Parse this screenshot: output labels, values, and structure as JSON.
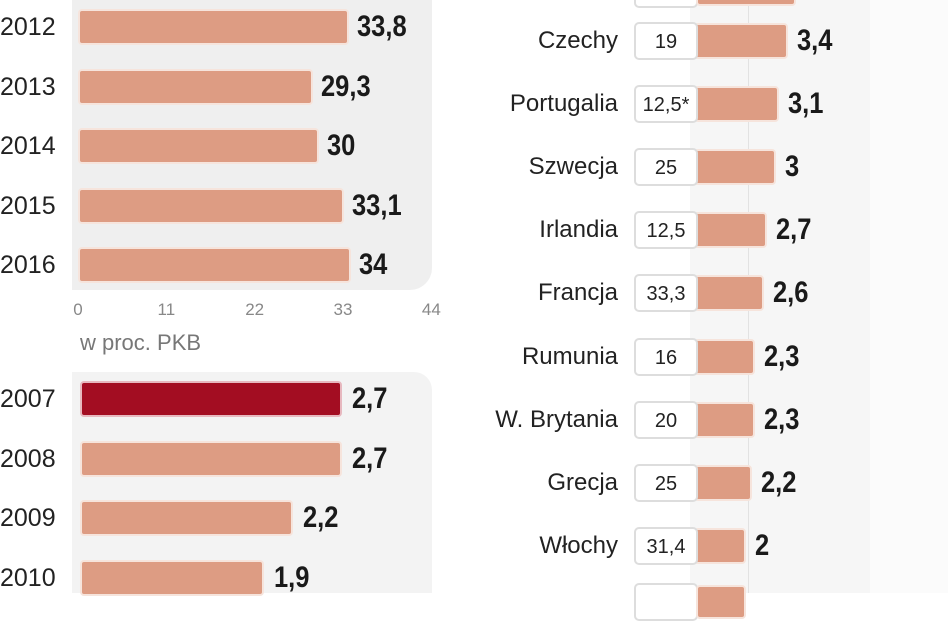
{
  "chart_data": [
    {
      "type": "bar",
      "orientation": "horizontal",
      "categories": [
        "2012",
        "2013",
        "2014",
        "2015",
        "2016"
      ],
      "values": [
        33.8,
        29.3,
        30,
        33.1,
        34
      ],
      "xlim": [
        0,
        44
      ],
      "xticks": [
        "0",
        "11",
        "22",
        "33",
        "44"
      ],
      "bar_color": "#dd9c83"
    },
    {
      "type": "bar",
      "orientation": "horizontal",
      "title": "w proc. PKB",
      "categories": [
        "2007",
        "2008",
        "2009",
        "2010"
      ],
      "values": [
        2.7,
        2.7,
        2.2,
        1.9
      ],
      "value_labels": [
        "2,7",
        "2,7",
        "2,2",
        "1,9"
      ],
      "highlight": "2007",
      "highlight_color": "#a30d22",
      "bar_color": "#dd9c83"
    },
    {
      "type": "bar",
      "orientation": "horizontal",
      "categories": [
        "Czechy",
        "Portugalia",
        "Szwecja",
        "Irlandia",
        "Francja",
        "Rumunia",
        "W. Brytania",
        "Grecja",
        "Włochy"
      ],
      "box_values": [
        "19",
        "12,5*",
        "25",
        "12,5",
        "33,3",
        "16",
        "20",
        "25",
        "31,4"
      ],
      "values": [
        3.4,
        3.1,
        3,
        2.7,
        2.6,
        2.3,
        2.3,
        2.2,
        2
      ],
      "value_labels": [
        "3,4",
        "3,1",
        "3",
        "2,7",
        "2,6",
        "2,3",
        "2,3",
        "2,2",
        "2"
      ],
      "bar_color": "#dd9c83"
    }
  ],
  "labels": {
    "top_values": [
      "33,8",
      "29,3",
      "30",
      "33,1",
      "34"
    ]
  }
}
